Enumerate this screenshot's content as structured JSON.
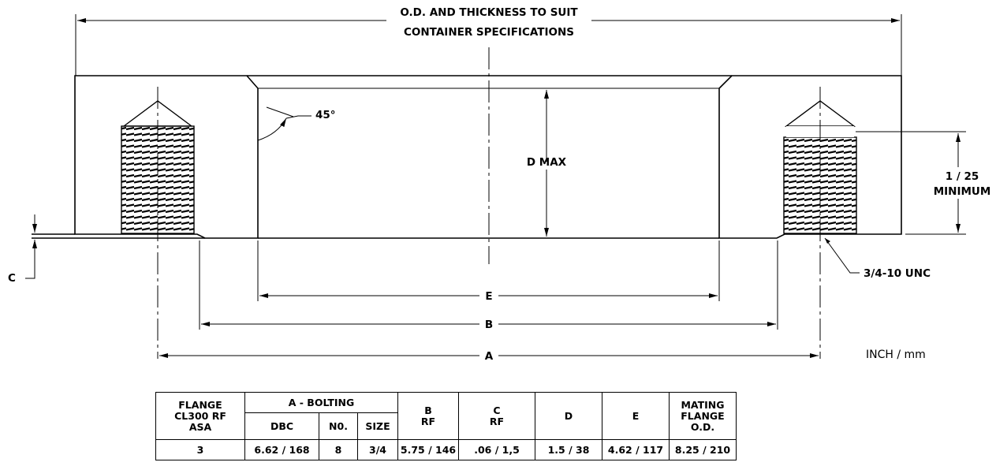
{
  "drawing": {
    "od_note_line1": "O.D. AND THICKNESS TO SUIT",
    "od_note_line2": "CONTAINER SPECIFICATIONS",
    "chamfer_angle": "45°",
    "d_label": "D MAX",
    "thread_depth_line1": "1 / 25",
    "thread_depth_line2": "MINIMUM",
    "thread_spec": "3/4-10 UNC",
    "c_label": "C",
    "e_label": "E",
    "b_label": "B",
    "a_label": "A",
    "units": "INCH / mm"
  },
  "table": {
    "headers": {
      "flange_line1": "FLANGE",
      "flange_line2": "CL300 RF",
      "flange_line3": "ASA",
      "bolting_group": "A - BOLTING",
      "dbc": "DBC",
      "no": "N0.",
      "size": "SIZE",
      "b_line1": "B",
      "b_line2": "RF",
      "c_line1": "C",
      "c_line2": "RF",
      "d": "D",
      "e": "E",
      "mating_line1": "MATING",
      "mating_line2": "FLANGE",
      "mating_line3": "O.D."
    },
    "row": {
      "flange": "3",
      "dbc": "6.62 / 168",
      "no": "8",
      "size": "3/4",
      "b_rf": "5.75 / 146",
      "c_rf": ".06 / 1,5",
      "d": "1.5 / 38",
      "e": "4.62 / 117",
      "mating_od": "8.25 / 210"
    }
  }
}
